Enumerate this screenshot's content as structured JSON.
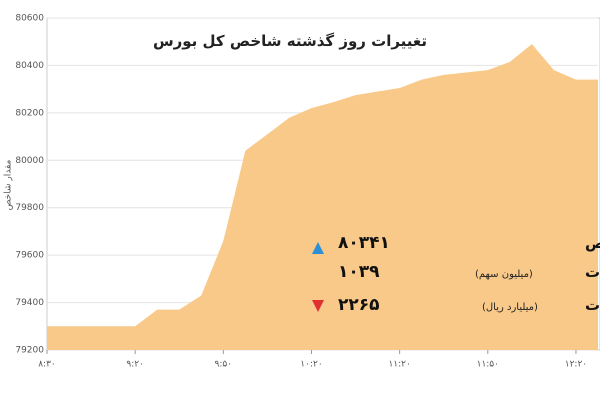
{
  "chart_data": {
    "type": "area",
    "title": "تغییرات روز گذشته شاخص کل بورس",
    "y_label": "مقدار شاخص",
    "categories": [
      "۸:۳۰",
      null,
      null,
      null,
      "۹:۲۰",
      null,
      null,
      null,
      "۹:۵۰",
      null,
      null,
      null,
      "۱۰:۲۰",
      null,
      null,
      null,
      "۱۱:۲۰",
      null,
      null,
      null,
      "۱۱:۵۰",
      null,
      null,
      null,
      "۱۲:۲۰",
      null
    ],
    "values": [
      79300,
      79300,
      79300,
      79300,
      79300,
      79370,
      79370,
      79430,
      79660,
      80040,
      80110,
      80180,
      80220,
      80245,
      80275,
      80290,
      80305,
      80340,
      80360,
      80370,
      80380,
      80415,
      80490,
      80380,
      80340,
      80340
    ],
    "color": "#f9c98a",
    "ylim": [
      79200,
      80600
    ],
    "yticks": [
      79200,
      79400,
      79600,
      79800,
      80000,
      80200,
      80400,
      80600
    ],
    "grid": true
  },
  "stats": {
    "rows": [
      {
        "label": "شاخص",
        "value": "۸۰۳۴۱"
      },
      {
        "label": "حجم معاملات",
        "unit": "(میلیون سهم)",
        "value": "۱۰۳۹"
      },
      {
        "label": "ارزش معاملات",
        "unit": "(میلیارد ریال)",
        "value": "۲۲۶۵"
      }
    ]
  }
}
